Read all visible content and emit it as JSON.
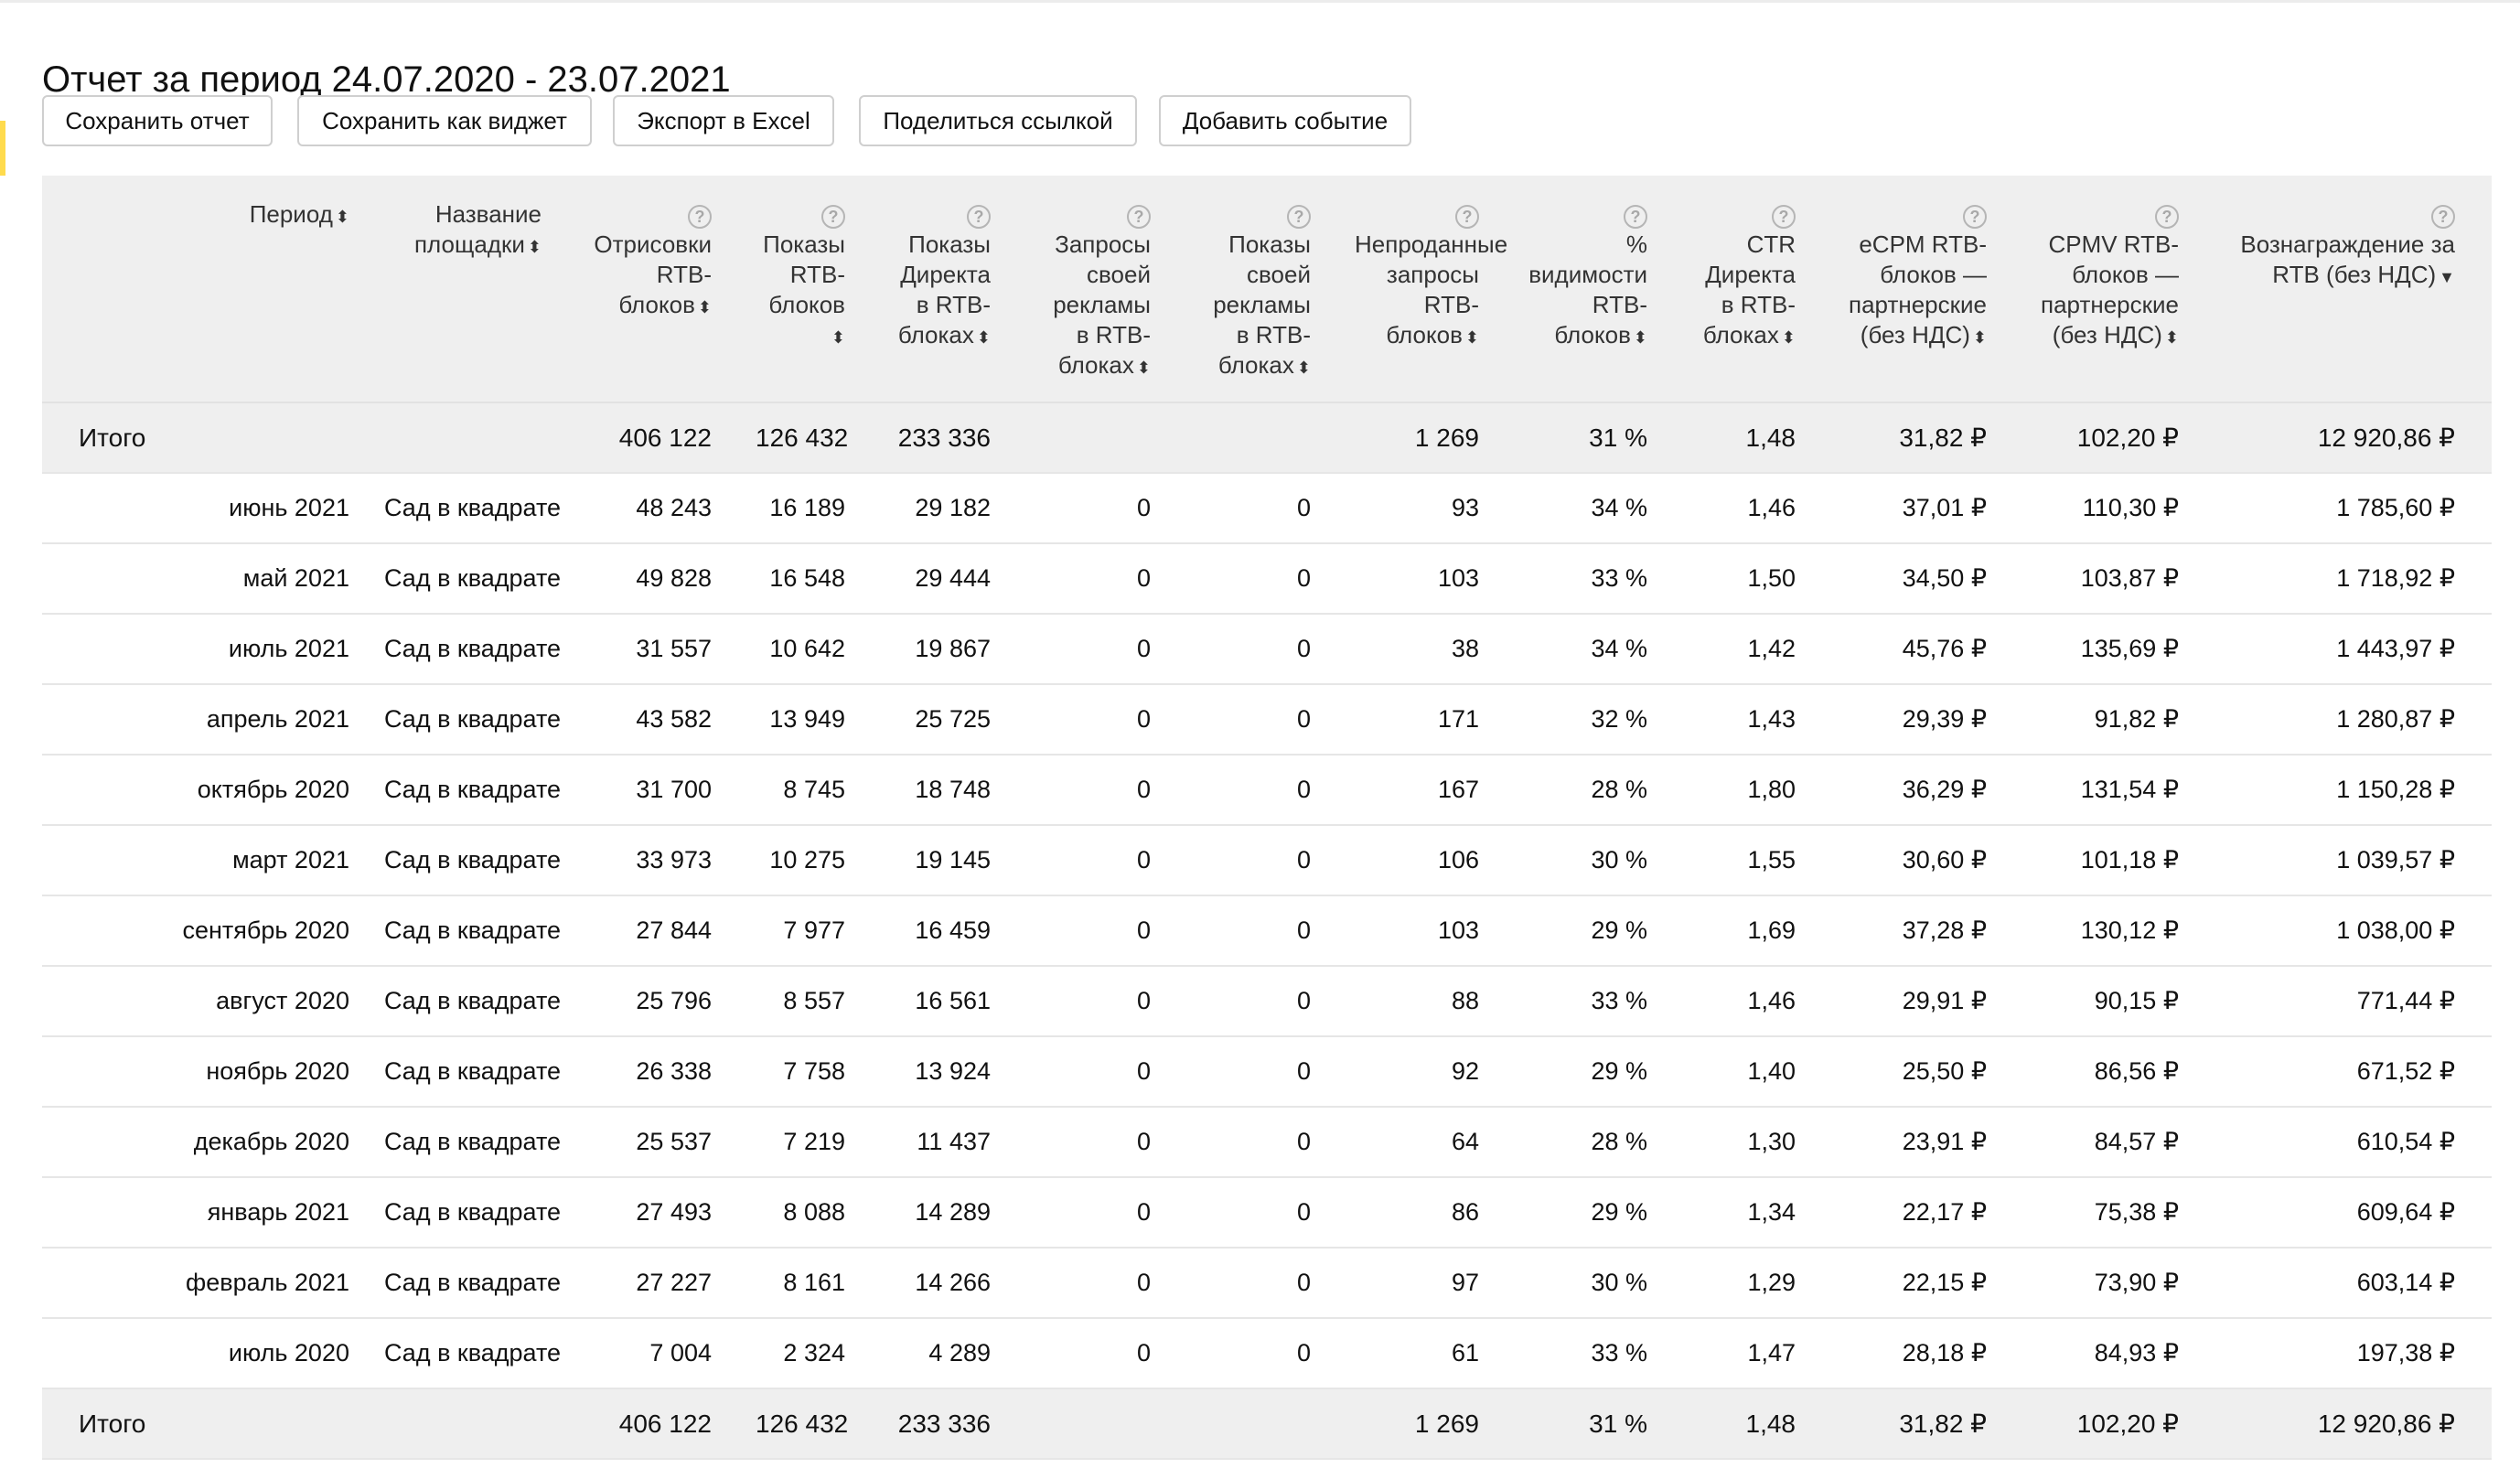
{
  "title": "Отчет за период 24.07.2020 - 23.07.2021",
  "toolbar": {
    "save_report": "Сохранить отчет",
    "save_widget": "Сохранить как виджет",
    "export_excel": "Экспорт в Excel",
    "share_link": "Поделиться ссылкой",
    "add_event": "Добавить событие"
  },
  "columns": [
    {
      "label": "Период",
      "help": false,
      "sort": "sort-both-icon"
    },
    {
      "label": "Название площадки",
      "help": false,
      "sort": "sort-both-icon"
    },
    {
      "label": "Отрисовки RTB-блоков",
      "help": true,
      "sort": "sort-both-icon"
    },
    {
      "label": "Показы RTB-блоков",
      "help": true,
      "sort": "sort-both-icon"
    },
    {
      "label": "Показы Директа в RTB-блоках",
      "help": true,
      "sort": "sort-both-icon"
    },
    {
      "label": "Запросы своей рекламы в RTB-блоках",
      "help": true,
      "sort": "sort-both-icon"
    },
    {
      "label": "Показы своей рекламы в RTB-блоках",
      "help": true,
      "sort": "sort-both-icon"
    },
    {
      "label": "Непроданные запросы RTB-блоков",
      "help": true,
      "sort": "sort-both-icon"
    },
    {
      "label": "% видимости RTB-блоков",
      "help": true,
      "sort": "sort-both-icon"
    },
    {
      "label": "CTR Директа в RTB-блоках",
      "help": true,
      "sort": "sort-both-icon"
    },
    {
      "label": "eCPM RTB-блоков — партнерские (без НДС)",
      "help": true,
      "sort": "sort-both-icon"
    },
    {
      "label": "CPMV RTB-блоков — партнерские (без НДС)",
      "help": true,
      "sort": "sort-both-icon"
    },
    {
      "label": "Вознаграждение за RTB (без НДС)",
      "help": true,
      "sort": "sort-desc-icon"
    }
  ],
  "total_top": {
    "label": "Итого",
    "values": [
      "406 122",
      "126 432",
      "233 336",
      "",
      "",
      "1 269",
      "31 %",
      "1,48",
      "31,82 ₽",
      "102,20 ₽",
      "12 920,86 ₽"
    ]
  },
  "rows": [
    [
      "июнь 2021",
      "Сад в квадрате",
      "48 243",
      "16 189",
      "29 182",
      "0",
      "0",
      "93",
      "34 %",
      "1,46",
      "37,01 ₽",
      "110,30 ₽",
      "1 785,60 ₽"
    ],
    [
      "май 2021",
      "Сад в квадрате",
      "49 828",
      "16 548",
      "29 444",
      "0",
      "0",
      "103",
      "33 %",
      "1,50",
      "34,50 ₽",
      "103,87 ₽",
      "1 718,92 ₽"
    ],
    [
      "июль 2021",
      "Сад в квадрате",
      "31 557",
      "10 642",
      "19 867",
      "0",
      "0",
      "38",
      "34 %",
      "1,42",
      "45,76 ₽",
      "135,69 ₽",
      "1 443,97 ₽"
    ],
    [
      "апрель 2021",
      "Сад в квадрате",
      "43 582",
      "13 949",
      "25 725",
      "0",
      "0",
      "171",
      "32 %",
      "1,43",
      "29,39 ₽",
      "91,82 ₽",
      "1 280,87 ₽"
    ],
    [
      "октябрь 2020",
      "Сад в квадрате",
      "31 700",
      "8 745",
      "18 748",
      "0",
      "0",
      "167",
      "28 %",
      "1,80",
      "36,29 ₽",
      "131,54 ₽",
      "1 150,28 ₽"
    ],
    [
      "март 2021",
      "Сад в квадрате",
      "33 973",
      "10 275",
      "19 145",
      "0",
      "0",
      "106",
      "30 %",
      "1,55",
      "30,60 ₽",
      "101,18 ₽",
      "1 039,57 ₽"
    ],
    [
      "сентябрь 2020",
      "Сад в квадрате",
      "27 844",
      "7 977",
      "16 459",
      "0",
      "0",
      "103",
      "29 %",
      "1,69",
      "37,28 ₽",
      "130,12 ₽",
      "1 038,00 ₽"
    ],
    [
      "август 2020",
      "Сад в квадрате",
      "25 796",
      "8 557",
      "16 561",
      "0",
      "0",
      "88",
      "33 %",
      "1,46",
      "29,91 ₽",
      "90,15 ₽",
      "771,44 ₽"
    ],
    [
      "ноябрь 2020",
      "Сад в квадрате",
      "26 338",
      "7 758",
      "13 924",
      "0",
      "0",
      "92",
      "29 %",
      "1,40",
      "25,50 ₽",
      "86,56 ₽",
      "671,52 ₽"
    ],
    [
      "декабрь 2020",
      "Сад в квадрате",
      "25 537",
      "7 219",
      "11 437",
      "0",
      "0",
      "64",
      "28 %",
      "1,30",
      "23,91 ₽",
      "84,57 ₽",
      "610,54 ₽"
    ],
    [
      "январь 2021",
      "Сад в квадрате",
      "27 493",
      "8 088",
      "14 289",
      "0",
      "0",
      "86",
      "29 %",
      "1,34",
      "22,17 ₽",
      "75,38 ₽",
      "609,64 ₽"
    ],
    [
      "февраль 2021",
      "Сад в квадрате",
      "27 227",
      "8 161",
      "14 266",
      "0",
      "0",
      "97",
      "30 %",
      "1,29",
      "22,15 ₽",
      "73,90 ₽",
      "603,14 ₽"
    ],
    [
      "июль 2020",
      "Сад в квадрате",
      "7 004",
      "2 324",
      "4 289",
      "0",
      "0",
      "61",
      "33 %",
      "1,47",
      "28,18 ₽",
      "84,93 ₽",
      "197,38 ₽"
    ]
  ],
  "total_bottom": {
    "label": "Итого",
    "values": [
      "406 122",
      "126 432",
      "233 336",
      "",
      "",
      "1 269",
      "31 %",
      "1,48",
      "31,82 ₽",
      "102,20 ₽",
      "12 920,86 ₽"
    ]
  }
}
